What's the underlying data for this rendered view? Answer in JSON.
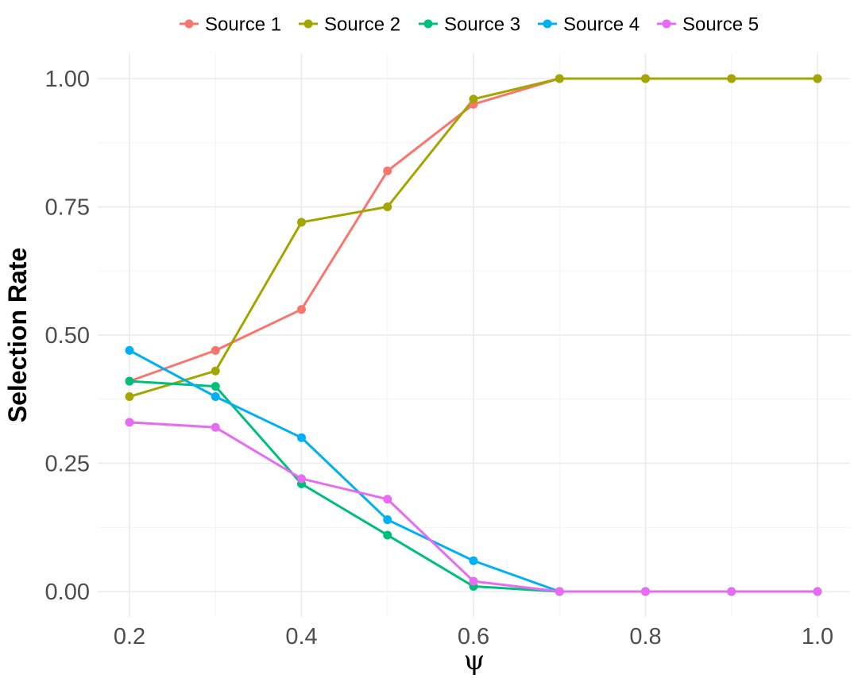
{
  "chart_data": {
    "type": "line",
    "title": "",
    "xlabel": "ψ",
    "ylabel": "Selection Rate",
    "xlim": [
      0.2,
      1.0
    ],
    "ylim": [
      0,
      1
    ],
    "x_ticks": [
      "0.2",
      "0.4",
      "0.6",
      "0.8",
      "1.0"
    ],
    "y_ticks": [
      "0.00",
      "0.25",
      "0.50",
      "0.75",
      "1.00"
    ],
    "grid": true,
    "legend_position": "top",
    "x": [
      0.2,
      0.3,
      0.4,
      0.5,
      0.6,
      0.7,
      0.8,
      0.9,
      1.0
    ],
    "series": [
      {
        "name": "Source 1",
        "color": "#F8766D",
        "values": [
          0.41,
          0.47,
          0.55,
          0.82,
          0.95,
          1.0,
          1.0,
          1.0,
          1.0
        ]
      },
      {
        "name": "Source 2",
        "color": "#A3A500",
        "values": [
          0.38,
          0.43,
          0.72,
          0.75,
          0.96,
          1.0,
          1.0,
          1.0,
          1.0
        ]
      },
      {
        "name": "Source 3",
        "color": "#00BF7D",
        "values": [
          0.41,
          0.4,
          0.21,
          0.11,
          0.01,
          0.0,
          0.0,
          0.0,
          0.0
        ]
      },
      {
        "name": "Source 4",
        "color": "#00B0F6",
        "values": [
          0.47,
          0.38,
          0.3,
          0.14,
          0.06,
          0.0,
          0.0,
          0.0,
          0.0
        ]
      },
      {
        "name": "Source 5",
        "color": "#E76BF3",
        "values": [
          0.33,
          0.32,
          0.22,
          0.18,
          0.02,
          0.0,
          0.0,
          0.0,
          0.0
        ]
      }
    ]
  }
}
